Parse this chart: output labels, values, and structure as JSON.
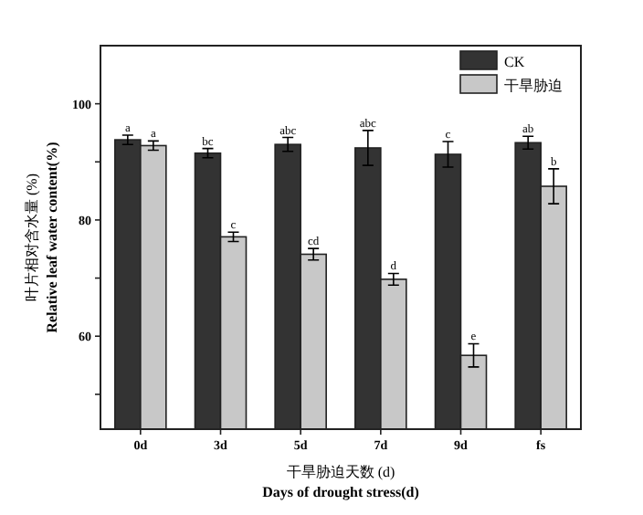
{
  "chart_data": {
    "type": "bar",
    "categories": [
      "0d",
      "3d",
      "5d",
      "7d",
      "9d",
      "fs"
    ],
    "series": [
      {
        "name": "CK",
        "color": "#333333",
        "values": [
          93.8,
          91.5,
          93.0,
          92.4,
          91.3,
          93.3
        ],
        "errors": [
          0.8,
          0.8,
          1.2,
          3.0,
          2.2,
          1.1
        ]
      },
      {
        "name": "干旱胁迫",
        "color": "#c8c8c8",
        "values": [
          92.8,
          77.1,
          74.1,
          69.8,
          56.7,
          85.8
        ],
        "errors": [
          0.8,
          0.8,
          1.0,
          1.0,
          2.0,
          3.0
        ]
      }
    ],
    "xlabel": "干旱胁迫天数 (d)\nDays of drought stress(d)",
    "ylabel": "叶片相对含水量 (%)\nRelative leaf water content(%)",
    "ylim": [
      44,
      110
    ],
    "yticks": [
      {
        "value": 50,
        "label": null
      },
      60,
      {
        "value": 70,
        "label": null
      },
      80,
      {
        "value": 90,
        "label": null
      },
      100
    ],
    "legend": "top right",
    "annotations": [
      {
        "text": "a",
        "x": "0d",
        "y": 94.6
      },
      {
        "text": "a",
        "x": "0d",
        "y": 93.6
      },
      {
        "text": "bc",
        "x": "3d",
        "y": 92.3
      },
      {
        "text": "c",
        "x": "3d",
        "y": 77.9
      },
      {
        "text": "abc",
        "x": "5d",
        "y": 94.2
      },
      {
        "text": "cd",
        "x": "5d",
        "y": 75.1
      },
      {
        "text": "abc",
        "x": "7d",
        "y": 95.4
      },
      {
        "text": "d",
        "x": "7d",
        "y": 70.8
      },
      {
        "text": "c",
        "x": "9d",
        "y": 93.5
      },
      {
        "text": "e",
        "x": "9d",
        "y": 58.7
      },
      {
        "text": "ab",
        "x": "fs",
        "y": 94.4
      },
      {
        "text": "b",
        "x": "fs",
        "y": 88.8
      }
    ]
  }
}
